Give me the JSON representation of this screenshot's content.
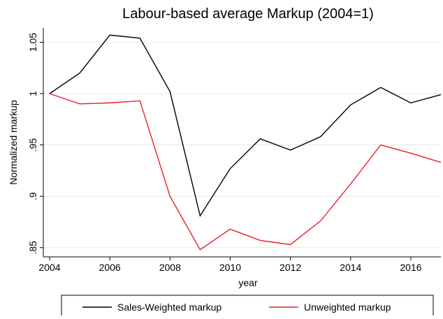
{
  "chart_data": {
    "type": "line",
    "title": "Labour-based average Markup (2004=1)",
    "x_label": "year",
    "y_label": "Normalized markup",
    "x": [
      2004,
      2005,
      2006,
      2007,
      2008,
      2009,
      2010,
      2011,
      2012,
      2013,
      2014,
      2015,
      2016,
      2017
    ],
    "series": [
      {
        "name": "Sales-Weighted markup",
        "color": "#000000",
        "values": [
          1,
          1.02,
          1.057,
          1.054,
          1.002,
          0.881,
          0.927,
          0.956,
          0.945,
          0.958,
          0.989,
          1.006,
          0.991,
          0.999
        ]
      },
      {
        "name": "Unweighted markup",
        "color": "#e8202a",
        "values": [
          1,
          0.99,
          0.991,
          0.993,
          0.9,
          0.848,
          0.868,
          0.857,
          0.853,
          0.876,
          0.912,
          0.95,
          0.942,
          0.933
        ]
      }
    ],
    "xlim": [
      2004,
      2017
    ],
    "xticks": [
      2004,
      2006,
      2008,
      2010,
      2012,
      2014,
      2016
    ],
    "ylim": [
      0.841,
      1.064
    ],
    "yticks": [
      {
        "value": 0.85,
        "label": ".85"
      },
      {
        "value": 0.9,
        "label": ".9"
      },
      {
        "value": 0.95,
        "label": ".95"
      },
      1,
      1.05
    ],
    "grid": true,
    "legend": "bottom"
  }
}
